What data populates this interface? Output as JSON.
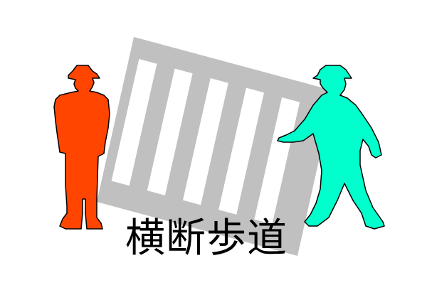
{
  "caption": {
    "text": "横断歩道"
  },
  "colors": {
    "background": "#ffffff",
    "crosswalk_frame": "#c0c0c0",
    "crosswalk_stripe": "#ffffff",
    "stop_figure": "#ff4500",
    "go_figure": "#00ffcc",
    "outline": "#000000",
    "caption_text": "#000000"
  },
  "icons": [
    "crosswalk-icon",
    "standing-person-icon",
    "walking-person-icon"
  ]
}
